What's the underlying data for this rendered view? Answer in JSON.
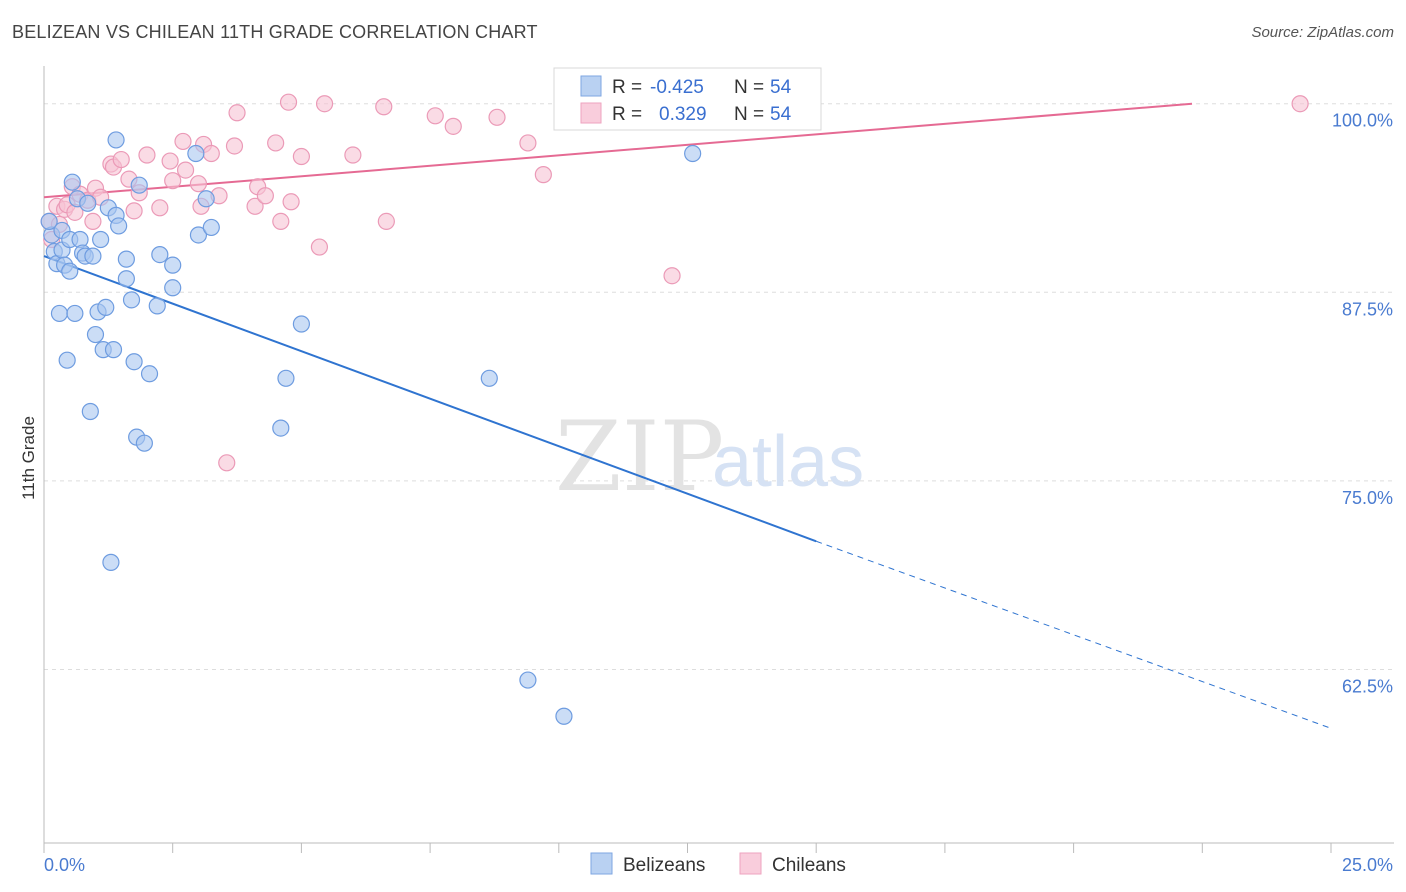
{
  "header": {
    "title": "BELIZEAN VS CHILEAN 11TH GRADE CORRELATION CHART",
    "source": "Source: ZipAtlas.com"
  },
  "watermark": {
    "zip": "ZIP",
    "atlas": "atlas"
  },
  "legend": {
    "r_label": "R =",
    "n_label": "N =",
    "rows": [
      {
        "series": "Belizeans",
        "r": "-0.425",
        "n": "54",
        "color": "#9fc0ee"
      },
      {
        "series": "Chileans",
        "r": "0.329",
        "n": "54",
        "color": "#f4b3c9"
      }
    ]
  },
  "colors": {
    "blue_fill": "#a9c6f0",
    "blue_stroke": "#6e9ce0",
    "blue_line": "#2f74d0",
    "pink_fill": "#f7c3d4",
    "pink_stroke": "#eb9ab7",
    "pink_line": "#e56a93",
    "grid": "#dddddd",
    "tick_text": "#4a7bd0"
  },
  "chart_data": {
    "type": "scatter",
    "title": "BELIZEAN VS CHILEAN 11TH GRADE CORRELATION CHART",
    "xlabel": "",
    "ylabel": "11th Grade",
    "xlim": [
      0,
      25
    ],
    "ylim": [
      51,
      102.5
    ],
    "x_tick_labels": [
      "0.0%",
      "25.0%"
    ],
    "y_ticks": [
      62.5,
      75.0,
      87.5,
      100.0
    ],
    "y_tick_labels": [
      "62.5%",
      "75.0%",
      "87.5%",
      "100.0%"
    ],
    "grid": true,
    "legend_position": "top-center",
    "series": [
      {
        "name": "Belizeans",
        "color": "#a9c6f0",
        "points": [
          [
            0.15,
            91.3
          ],
          [
            0.2,
            90.2
          ],
          [
            0.25,
            89.4
          ],
          [
            0.3,
            86.1
          ],
          [
            0.35,
            90.3
          ],
          [
            0.35,
            91.6
          ],
          [
            0.4,
            89.3
          ],
          [
            0.45,
            83.0
          ],
          [
            0.5,
            91.0
          ],
          [
            0.5,
            88.9
          ],
          [
            0.55,
            94.8
          ],
          [
            0.6,
            86.1
          ],
          [
            0.65,
            93.7
          ],
          [
            0.7,
            91.0
          ],
          [
            0.75,
            90.1
          ],
          [
            0.8,
            89.9
          ],
          [
            0.85,
            93.4
          ],
          [
            0.9,
            79.6
          ],
          [
            0.95,
            89.9
          ],
          [
            1.0,
            84.7
          ],
          [
            1.05,
            86.2
          ],
          [
            1.1,
            91.0
          ],
          [
            1.15,
            83.7
          ],
          [
            1.2,
            86.5
          ],
          [
            1.25,
            93.1
          ],
          [
            1.3,
            69.6
          ],
          [
            1.35,
            83.7
          ],
          [
            1.4,
            92.6
          ],
          [
            1.4,
            97.6
          ],
          [
            1.45,
            91.9
          ],
          [
            1.6,
            89.7
          ],
          [
            1.6,
            88.4
          ],
          [
            1.7,
            87.0
          ],
          [
            1.75,
            82.9
          ],
          [
            1.8,
            77.9
          ],
          [
            1.85,
            94.6
          ],
          [
            1.95,
            77.5
          ],
          [
            2.05,
            82.1
          ],
          [
            2.2,
            86.6
          ],
          [
            2.25,
            90.0
          ],
          [
            2.5,
            89.3
          ],
          [
            2.5,
            87.8
          ],
          [
            2.95,
            96.7
          ],
          [
            3.0,
            91.3
          ],
          [
            3.15,
            93.7
          ],
          [
            3.25,
            91.8
          ],
          [
            4.6,
            78.5
          ],
          [
            4.7,
            81.8
          ],
          [
            5.0,
            85.4
          ],
          [
            8.65,
            81.8
          ],
          [
            9.4,
            61.8
          ],
          [
            10.1,
            59.4
          ],
          [
            12.6,
            96.7
          ],
          [
            0.1,
            92.2
          ]
        ]
      },
      {
        "name": "Chileans",
        "color": "#f7c3d4",
        "points": [
          [
            0.1,
            92.2
          ],
          [
            0.15,
            91.0
          ],
          [
            0.25,
            93.2
          ],
          [
            0.3,
            92.0
          ],
          [
            0.4,
            93.0
          ],
          [
            0.45,
            93.3
          ],
          [
            0.55,
            94.5
          ],
          [
            0.6,
            92.8
          ],
          [
            0.7,
            94.0
          ],
          [
            0.85,
            93.6
          ],
          [
            0.95,
            92.2
          ],
          [
            1.0,
            94.4
          ],
          [
            1.1,
            93.8
          ],
          [
            1.3,
            96.0
          ],
          [
            1.35,
            95.8
          ],
          [
            1.5,
            96.3
          ],
          [
            1.65,
            95.0
          ],
          [
            1.75,
            92.9
          ],
          [
            1.85,
            94.1
          ],
          [
            2.0,
            96.6
          ],
          [
            2.25,
            93.1
          ],
          [
            2.45,
            96.2
          ],
          [
            2.5,
            94.9
          ],
          [
            2.7,
            97.5
          ],
          [
            2.75,
            95.6
          ],
          [
            3.0,
            94.7
          ],
          [
            3.05,
            93.2
          ],
          [
            3.1,
            97.3
          ],
          [
            3.25,
            96.7
          ],
          [
            3.4,
            93.9
          ],
          [
            3.55,
            76.2
          ],
          [
            3.7,
            97.2
          ],
          [
            3.75,
            99.4
          ],
          [
            4.1,
            93.2
          ],
          [
            4.15,
            94.5
          ],
          [
            4.3,
            93.9
          ],
          [
            4.5,
            97.4
          ],
          [
            4.6,
            92.2
          ],
          [
            4.75,
            100.1
          ],
          [
            4.8,
            93.5
          ],
          [
            5.0,
            96.5
          ],
          [
            5.35,
            90.5
          ],
          [
            5.45,
            100.0
          ],
          [
            6.0,
            96.6
          ],
          [
            6.6,
            99.8
          ],
          [
            6.65,
            92.2
          ],
          [
            7.6,
            99.2
          ],
          [
            7.95,
            98.5
          ],
          [
            8.8,
            99.1
          ],
          [
            9.4,
            97.4
          ],
          [
            9.7,
            95.3
          ],
          [
            12.2,
            88.6
          ],
          [
            14.3,
            100.0
          ],
          [
            24.4,
            100.0
          ]
        ]
      }
    ],
    "trend_lines": [
      {
        "series": "Belizeans",
        "x": [
          0,
          15
        ],
        "y": [
          89.9,
          71.0
        ],
        "dashed_to_x": 25,
        "dashed_to_y": 58.6
      },
      {
        "series": "Chileans",
        "x": [
          0,
          22.3
        ],
        "y": [
          93.8,
          100.0
        ]
      }
    ]
  },
  "bottom_legend": [
    {
      "label": "Belizeans",
      "color": "#a9c6f0"
    },
    {
      "label": "Chileans",
      "color": "#f7c3d4"
    }
  ]
}
